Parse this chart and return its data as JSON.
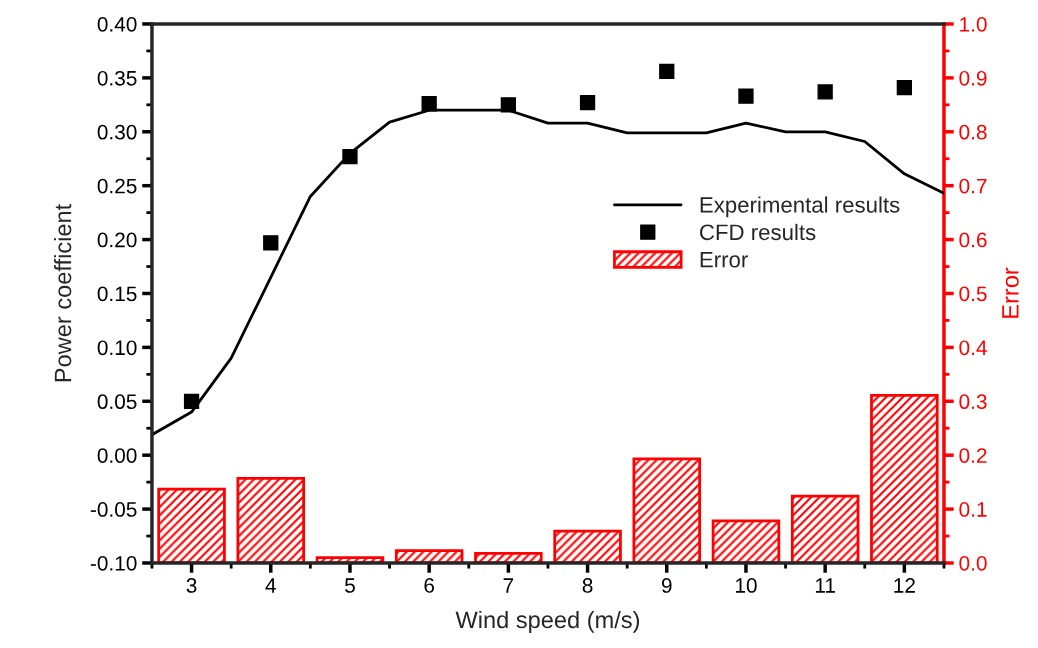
{
  "chart_data": {
    "type": "line",
    "xlabel": "Wind speed (m/s)",
    "ylabel": "Power coefficient",
    "y2label": "Error",
    "xlim": [
      2.5,
      12.5
    ],
    "xticks": [
      3,
      4,
      5,
      6,
      7,
      8,
      9,
      10,
      11,
      12
    ],
    "ylim": [
      -0.1,
      0.4
    ],
    "yticks": [
      {
        "value": -0.1,
        "label": "-0.10"
      },
      {
        "value": -0.05,
        "label": "-0.05"
      },
      {
        "value": 0,
        "label": "0.00"
      },
      {
        "value": 0.05,
        "label": "0.05"
      },
      {
        "value": 0.1,
        "label": "0.10"
      },
      {
        "value": 0.15,
        "label": "0.15"
      },
      {
        "value": 0.2,
        "label": "0.20"
      },
      {
        "value": 0.25,
        "label": "0.25"
      },
      {
        "value": 0.3,
        "label": "0.30"
      },
      {
        "value": 0.35,
        "label": "0.35"
      },
      {
        "value": 0.4,
        "label": "0.40"
      }
    ],
    "y2lim": [
      0,
      1
    ],
    "y2ticks": [
      {
        "value": 0,
        "label": "0.0"
      },
      {
        "value": 0.1,
        "label": "0.1"
      },
      {
        "value": 0.2,
        "label": "0.2"
      },
      {
        "value": 0.3,
        "label": "0.3"
      },
      {
        "value": 0.4,
        "label": "0.4"
      },
      {
        "value": 0.5,
        "label": "0.5"
      },
      {
        "value": 0.6,
        "label": "0.6"
      },
      {
        "value": 0.7,
        "label": "0.7"
      },
      {
        "value": 0.8,
        "label": "0.8"
      },
      {
        "value": 0.9,
        "label": "0.9"
      },
      {
        "value": 1,
        "label": "1.0"
      }
    ],
    "legend": "center right",
    "grid": false,
    "series": [
      {
        "name": "Experimental results",
        "color": "#000000",
        "line_style": "solid",
        "marker": "none",
        "x": [
          2.5,
          3,
          3.5,
          4,
          4.5,
          5,
          5.5,
          6,
          6.5,
          7,
          7.5,
          8,
          8.5,
          9,
          9.5,
          10,
          10.5,
          11,
          11.5,
          12,
          12.5
        ],
        "values": [
          0.019,
          0.04,
          0.09,
          0.165,
          0.24,
          0.28,
          0.309,
          0.32,
          0.32,
          0.32,
          0.308,
          0.308,
          0.299,
          0.299,
          0.299,
          0.308,
          0.3,
          0.3,
          0.291,
          0.261,
          0.243
        ]
      },
      {
        "name": "CFD results",
        "type": "scatter",
        "color": "#000000",
        "marker": "square",
        "x": [
          3,
          4,
          5,
          6,
          7,
          8,
          9,
          10,
          11,
          12
        ],
        "values": [
          0.05,
          0.197,
          0.277,
          0.326,
          0.325,
          0.327,
          0.356,
          0.333,
          0.337,
          0.341
        ]
      },
      {
        "name": "Error",
        "type": "bar",
        "axis": "y2",
        "color": "#ff0000",
        "x": [
          3,
          4,
          5,
          6,
          7,
          8,
          9,
          10,
          11,
          12
        ],
        "values": [
          0.137,
          0.157,
          0.01,
          0.023,
          0.018,
          0.059,
          0.193,
          0.078,
          0.124,
          0.311
        ]
      }
    ]
  }
}
